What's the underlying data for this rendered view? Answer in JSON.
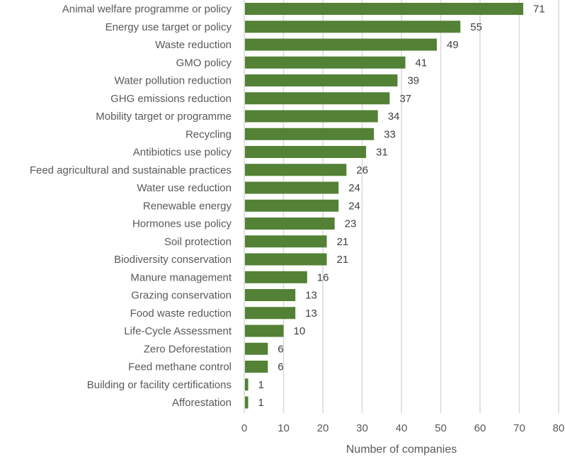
{
  "chart_data": {
    "type": "bar",
    "orientation": "horizontal",
    "title": "",
    "xlabel": "Number of companies",
    "ylabel": "",
    "xlim": [
      0,
      80
    ],
    "x_ticks": [
      0,
      10,
      20,
      30,
      40,
      50,
      60,
      70,
      80
    ],
    "grid": true,
    "legend": "none",
    "bar_color": "#538135",
    "categories": [
      "Animal welfare programme or policy",
      "Energy use target or policy",
      "Waste reduction",
      "GMO policy",
      "Water pollution reduction",
      "GHG emissions reduction",
      "Mobility target or programme",
      "Recycling",
      "Antibiotics use policy",
      "Feed agricultural and sustainable practices",
      "Water use reduction",
      "Renewable energy",
      "Hormones use policy",
      "Soil protection",
      "Biodiversity conservation",
      "Manure management",
      "Grazing conservation",
      "Food waste reduction",
      "Life-Cycle Assessment",
      "Zero Deforestation",
      "Feed methane control",
      "Building or facility certifications",
      "Afforestation"
    ],
    "values": [
      71,
      55,
      49,
      41,
      39,
      37,
      34,
      33,
      31,
      26,
      24,
      24,
      23,
      21,
      21,
      16,
      13,
      13,
      10,
      6,
      6,
      1,
      1
    ]
  }
}
